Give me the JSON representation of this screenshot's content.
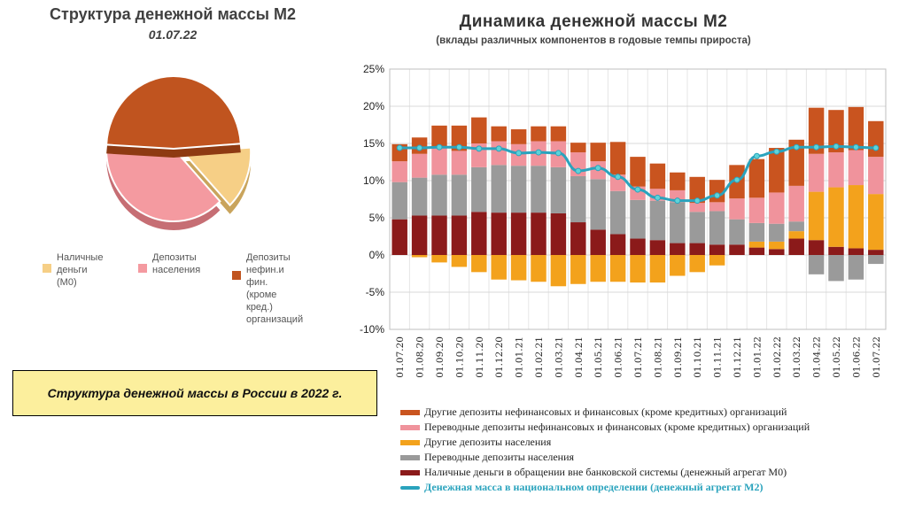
{
  "pie_chart": {
    "title": "Структура денежной массы М2",
    "date": "01.07.22",
    "legend": [
      {
        "label": "Наличные\nденьги\n(М0)",
        "color": "#f6cf86"
      },
      {
        "label": "Депозиты\nнаселения",
        "color": "#f49aa0"
      },
      {
        "label": "Депозиты\nнефин.и фин.\n(кроме кред.)\nорганизаций",
        "color": "#c0541f"
      }
    ],
    "chart_data": {
      "type": "pie",
      "categories": [
        "Наличные деньги (М0)",
        "Депозиты населения",
        "Депозиты нефин.и фин. (кроме кред.) организаций"
      ],
      "values": [
        14,
        38,
        48
      ],
      "exploded": "Наличные деньги (М0)"
    }
  },
  "caption": "Структура денежной массы в России в 2022 г.",
  "bar_chart": {
    "title": "Динамика денежной массы М2",
    "subtitle": "(вклады различных компонентов в годовые темпы прироста)",
    "y_tick_labels": [
      "25%",
      "20%",
      "15%",
      "10%",
      "5%",
      "0%",
      "-5%",
      "-10%"
    ],
    "chart_data": {
      "type": "bar",
      "stacked": true,
      "ylim": [
        -10,
        25
      ],
      "grid": true,
      "categories": [
        "01.07.20",
        "01.08.20",
        "01.09.20",
        "01.10.20",
        "01.11.20",
        "01.12.20",
        "01.01.21",
        "01.02.21",
        "01.03.21",
        "01.04.21",
        "01.05.21",
        "01.06.21",
        "01.07.21",
        "01.08.21",
        "01.09.21",
        "01.10.21",
        "01.11.21",
        "01.12.21",
        "01.01.22",
        "01.02.22",
        "01.03.22",
        "01.04.22",
        "01.05.22",
        "01.06.22",
        "01.07.22"
      ],
      "series": [
        {
          "name": "Наличные деньги в обращении вне банковской системы (денежный агрегат М0)",
          "color": "#8b1a1a",
          "values": [
            4.8,
            5.3,
            5.3,
            5.3,
            5.8,
            5.7,
            5.7,
            5.7,
            5.6,
            4.4,
            3.4,
            2.8,
            2.2,
            2.0,
            1.6,
            1.6,
            1.4,
            1.4,
            1.0,
            0.8,
            2.2,
            2.0,
            1.1,
            0.9,
            0.7
          ]
        },
        {
          "name": "Другие депозиты населения",
          "color": "#f3a21c",
          "values": [
            0,
            -0.3,
            -1.0,
            -1.6,
            -2.3,
            -3.3,
            -3.4,
            -3.6,
            -4.2,
            -3.9,
            -3.6,
            -3.6,
            -3.7,
            -3.7,
            -2.8,
            -2.3,
            -1.4,
            0,
            0.8,
            1.0,
            1.0,
            6.5,
            8.0,
            8.5,
            7.5
          ]
        },
        {
          "name": "Переводные депозиты населения",
          "color": "#9a9a9a",
          "values": [
            5.0,
            5.1,
            5.5,
            5.5,
            6.0,
            6.4,
            6.3,
            6.3,
            6.2,
            6.2,
            6.8,
            5.8,
            5.2,
            5.3,
            5.5,
            4.2,
            4.5,
            3.4,
            2.5,
            2.4,
            1.3,
            -2.6,
            -3.5,
            -3.3,
            -1.2
          ]
        },
        {
          "name": "Переводные депозиты нефинансовых и финансовых (кроме кредитных) организаций",
          "color": "#f0939c",
          "values": [
            2.8,
            3.2,
            3.6,
            3.2,
            3.2,
            3.2,
            2.9,
            3.3,
            3.5,
            3.2,
            2.4,
            2.2,
            1.8,
            1.6,
            1.6,
            1.2,
            1.2,
            2.8,
            3.4,
            4.2,
            4.8,
            5.1,
            4.7,
            4.7,
            5.0
          ]
        },
        {
          "name": "Другие депозиты нефинансовых и финансовых (кроме кредитных) организаций",
          "color": "#c9541f",
          "values": [
            2.3,
            2.2,
            3.0,
            3.4,
            3.5,
            2.0,
            2.0,
            2.0,
            2.0,
            1.3,
            2.5,
            4.4,
            4.0,
            3.4,
            2.4,
            3.5,
            3.0,
            4.5,
            5.2,
            6.0,
            6.2,
            6.2,
            5.7,
            5.8,
            4.8
          ]
        }
      ],
      "line": {
        "name": "Денежная масса в национальном определении (денежный агрегат М2)",
        "color": "#2aa3bd",
        "values": [
          14.4,
          14.4,
          14.5,
          14.5,
          14.3,
          14.3,
          13.7,
          13.8,
          13.7,
          11.3,
          11.7,
          10.5,
          8.8,
          7.7,
          7.3,
          7.3,
          8.0,
          10.1,
          13.3,
          13.9,
          14.5,
          14.5,
          14.6,
          14.5,
          14.4
        ]
      }
    }
  },
  "legend_items": [
    {
      "label": "Другие депозиты нефинансовых и финансовых (кроме кредитных)  организаций",
      "color": "#c9541f"
    },
    {
      "label": "Переводные депозиты нефинансовых и финансовых (кроме кредитных)  организаций",
      "color": "#f0939c"
    },
    {
      "label": "Другие депозиты населения",
      "color": "#f3a21c"
    },
    {
      "label": "Переводные депозиты населения",
      "color": "#9a9a9a"
    },
    {
      "label": "Наличные деньги в обращении вне банковской системы (денежный агрегат М0)",
      "color": "#8b1a1a"
    },
    {
      "label": "Денежная масса в национальном определении  (денежный агрегат М2)",
      "color": "#2aa3bd"
    }
  ]
}
